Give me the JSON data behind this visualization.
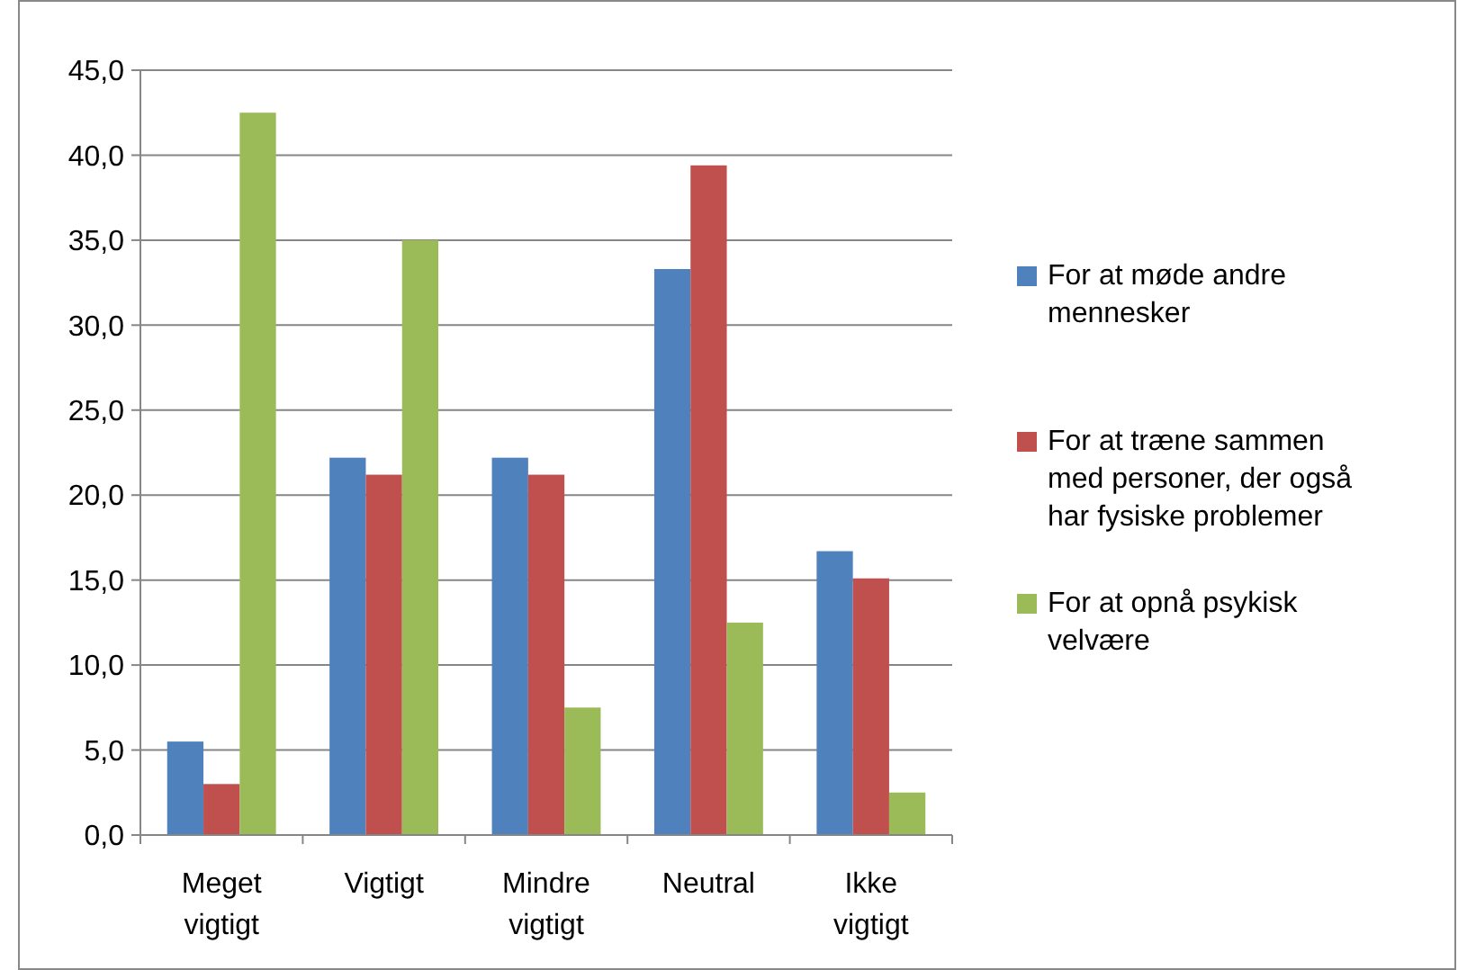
{
  "chart_data": {
    "type": "bar",
    "categories": [
      "Meget vigtigt",
      "Vigtigt",
      "Mindre vigtigt",
      "Neutral",
      "Ikke vigtigt"
    ],
    "series": [
      {
        "name": "For at møde andre mennesker",
        "color": "#4f81bd",
        "values": [
          5.5,
          22.2,
          22.2,
          33.3,
          16.7
        ]
      },
      {
        "name": "For at træne sammen med personer, der også har fysiske problemer",
        "color": "#c0504d",
        "values": [
          3.0,
          21.2,
          21.2,
          39.4,
          15.1
        ]
      },
      {
        "name": "For at opnå psykisk velvære",
        "color": "#9bbb59",
        "values": [
          42.5,
          35.0,
          7.5,
          12.5,
          2.5
        ]
      }
    ],
    "ylim": [
      0,
      45
    ],
    "yticks": [
      {
        "value": 0,
        "label": "0,0"
      },
      {
        "value": 5,
        "label": "5,0"
      },
      {
        "value": 10,
        "label": "10,0"
      },
      {
        "value": 15,
        "label": "15,0"
      },
      {
        "value": 20,
        "label": "20,0"
      },
      {
        "value": 25,
        "label": "25,0"
      },
      {
        "value": 30,
        "label": "30,0"
      },
      {
        "value": 35,
        "label": "35,0"
      },
      {
        "value": 40,
        "label": "40,0"
      },
      {
        "value": 45,
        "label": "45,0"
      }
    ],
    "grid": "y",
    "legend": "right"
  }
}
